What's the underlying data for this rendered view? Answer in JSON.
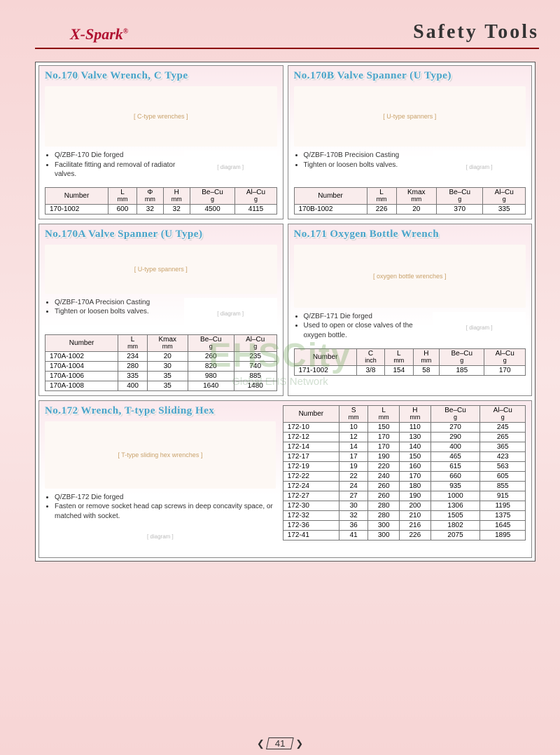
{
  "header": {
    "logo_text": "X-Spark",
    "logo_reg": "®",
    "page_title": "Safety  Tools"
  },
  "page_number": "41",
  "watermark": {
    "main": "EHSCity",
    "sub": "Global EHS Network"
  },
  "panels": {
    "p170": {
      "title": "No.170 Valve Wrench, C Type",
      "notes": [
        "Q/ZBF-170    Die forged",
        "Facilitate fitting and removal of radiator valves."
      ],
      "columns": [
        {
          "h": "Number",
          "sub": ""
        },
        {
          "h": "L",
          "sub": "mm"
        },
        {
          "h": "Φ",
          "sub": "mm"
        },
        {
          "h": "H",
          "sub": "mm"
        },
        {
          "h": "Be–Cu",
          "sub": "g"
        },
        {
          "h": "Al–Cu",
          "sub": "g"
        }
      ],
      "rows": [
        [
          "170-1002",
          "600",
          "32",
          "32",
          "4500",
          "4115"
        ]
      ]
    },
    "p170b": {
      "title": "No.170B Valve Spanner (U Type)",
      "notes": [
        "Q/ZBF-170B  Precision Casting",
        "Tighten or loosen bolts valves."
      ],
      "columns": [
        {
          "h": "Number",
          "sub": ""
        },
        {
          "h": "L",
          "sub": "mm"
        },
        {
          "h": "Kmax",
          "sub": "mm"
        },
        {
          "h": "Be–Cu",
          "sub": "g"
        },
        {
          "h": "Al–Cu",
          "sub": "g"
        }
      ],
      "rows": [
        [
          "170B-1002",
          "226",
          "20",
          "370",
          "335"
        ]
      ]
    },
    "p170a": {
      "title": "No.170A Valve Spanner (U Type)",
      "notes": [
        "Q/ZBF-170A  Precision Casting",
        "Tighten or loosen bolts valves."
      ],
      "columns": [
        {
          "h": "Number",
          "sub": ""
        },
        {
          "h": "L",
          "sub": "mm"
        },
        {
          "h": "Kmax",
          "sub": "mm"
        },
        {
          "h": "Be–Cu",
          "sub": "g"
        },
        {
          "h": "Al–Cu",
          "sub": "g"
        }
      ],
      "rows": [
        [
          "170A-1002",
          "234",
          "20",
          "260",
          "235"
        ],
        [
          "170A-1004",
          "280",
          "30",
          "820",
          "740"
        ],
        [
          "170A-1006",
          "335",
          "35",
          "980",
          "885"
        ],
        [
          "170A-1008",
          "400",
          "35",
          "1640",
          "1480"
        ]
      ]
    },
    "p171": {
      "title": "No.171 Oxygen Bottle Wrench",
      "notes": [
        "Q/ZBF-171  Die forged",
        "Used to open or close valves of the oxygen bottle."
      ],
      "columns": [
        {
          "h": "Number",
          "sub": ""
        },
        {
          "h": "C",
          "sub": "inch"
        },
        {
          "h": "L",
          "sub": "mm"
        },
        {
          "h": "H",
          "sub": "mm"
        },
        {
          "h": "Be–Cu",
          "sub": "g"
        },
        {
          "h": "Al–Cu",
          "sub": "g"
        }
      ],
      "rows": [
        [
          "171-1002",
          "3/8",
          "154",
          "58",
          "185",
          "170"
        ]
      ]
    },
    "p172": {
      "title": "No.172 Wrench, T-type Sliding Hex",
      "notes": [
        "Q/ZBF-172  Die forged",
        "Fasten or remove socket head cap screws in deep concavity space, or matched with socket."
      ],
      "columns": [
        {
          "h": "Number",
          "sub": ""
        },
        {
          "h": "S",
          "sub": "mm"
        },
        {
          "h": "L",
          "sub": "mm"
        },
        {
          "h": "H",
          "sub": "mm"
        },
        {
          "h": "Be–Cu",
          "sub": "g"
        },
        {
          "h": "Al–Cu",
          "sub": "g"
        }
      ],
      "rows": [
        [
          "172-10",
          "10",
          "150",
          "110",
          "270",
          "245"
        ],
        [
          "172-12",
          "12",
          "170",
          "130",
          "290",
          "265"
        ],
        [
          "172-14",
          "14",
          "170",
          "140",
          "400",
          "365"
        ],
        [
          "172-17",
          "17",
          "190",
          "150",
          "465",
          "423"
        ],
        [
          "172-19",
          "19",
          "220",
          "160",
          "615",
          "563"
        ],
        [
          "172-22",
          "22",
          "240",
          "170",
          "660",
          "605"
        ],
        [
          "172-24",
          "24",
          "260",
          "180",
          "935",
          "855"
        ],
        [
          "172-27",
          "27",
          "260",
          "190",
          "1000",
          "915"
        ],
        [
          "172-30",
          "30",
          "280",
          "200",
          "1306",
          "1195"
        ],
        [
          "172-32",
          "32",
          "280",
          "210",
          "1505",
          "1375"
        ],
        [
          "172-36",
          "36",
          "300",
          "216",
          "1802",
          "1645"
        ],
        [
          "172-41",
          "41",
          "300",
          "226",
          "2075",
          "1895"
        ]
      ]
    }
  }
}
